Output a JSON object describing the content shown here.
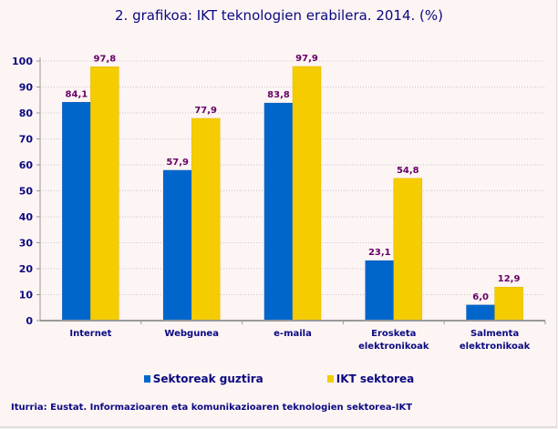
{
  "chart_data": {
    "type": "bar",
    "title": "2. grafikoa: IKT teknologien erabilera. 2014. (%)",
    "categories": [
      [
        "Internet"
      ],
      [
        "Webgunea"
      ],
      [
        "e-maila"
      ],
      [
        "Erosketa",
        "elektronikoak"
      ],
      [
        "Salmenta",
        "elektronikoak"
      ]
    ],
    "series": [
      {
        "name": "Sektoreak guztira",
        "color": "#0066cc",
        "values": [
          84.1,
          57.9,
          83.8,
          23.1,
          6.0
        ],
        "labels": [
          "84,1",
          "57,9",
          "83,8",
          "23,1",
          "6,0"
        ]
      },
      {
        "name": "IKT sektorea",
        "color": "#f5cc00",
        "values": [
          97.8,
          77.9,
          97.9,
          54.8,
          12.9
        ],
        "labels": [
          "97,8",
          "77,9",
          "97,9",
          "54,8",
          "12,9"
        ]
      }
    ],
    "ylim": [
      0,
      100
    ],
    "yticks": [
      0,
      10,
      20,
      30,
      40,
      50,
      60,
      70,
      80,
      90,
      100
    ],
    "grid": true,
    "legend": "bottom",
    "xlabel": "",
    "ylabel": ""
  },
  "source": "Iturria: Eustat. Informazioaren eta komunikazioaren teknologien sektorea-IKT"
}
